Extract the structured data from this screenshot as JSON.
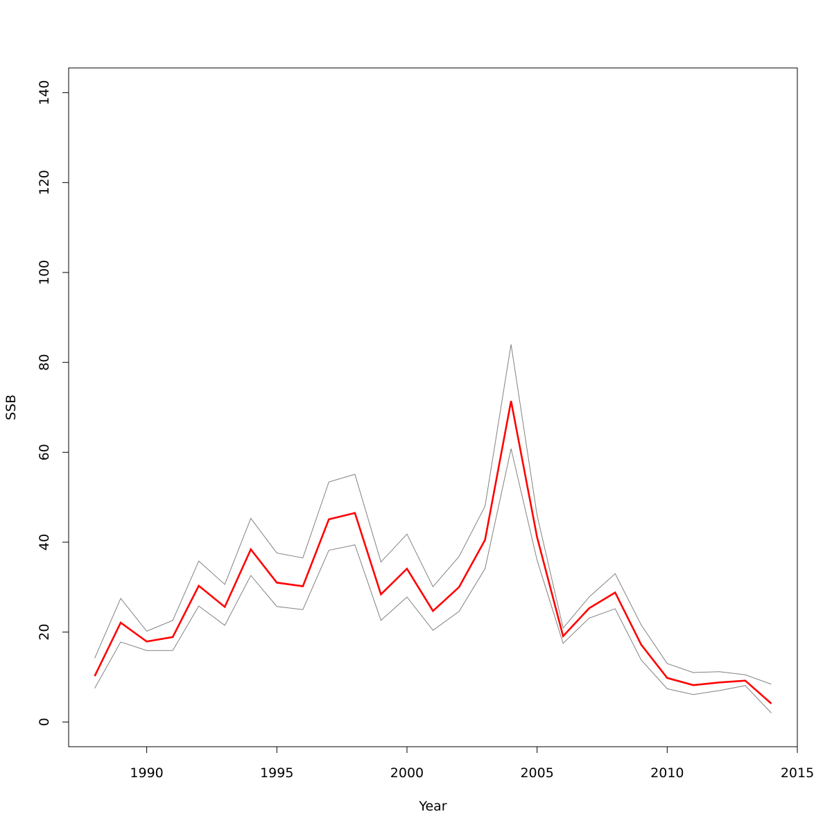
{
  "chart_data": {
    "type": "line",
    "title": "",
    "xlabel": "Year",
    "ylabel": "SSB",
    "xlim": [
      1987,
      2015
    ],
    "ylim": [
      -5.5,
      145.5
    ],
    "xticks": [
      "1990",
      "1995",
      "2000",
      "2005",
      "2010",
      "2015"
    ],
    "yticks": [
      "0",
      "20",
      "40",
      "60",
      "80",
      "100",
      "120",
      "140"
    ],
    "grid": false,
    "legend": "none",
    "x": [
      1988,
      1989,
      1990,
      1991,
      1992,
      1993,
      1994,
      1995,
      1996,
      1997,
      1998,
      1999,
      2000,
      2001,
      2002,
      2003,
      2004,
      2005,
      2006,
      2007,
      2008,
      2009,
      2010,
      2011,
      2012,
      2013,
      2014
    ],
    "series": [
      {
        "key": "estimate",
        "color": "#ff0000",
        "values": [
          10.2,
          22.1,
          17.9,
          18.9,
          30.3,
          25.6,
          38.4,
          31.0,
          30.2,
          45.1,
          46.5,
          28.4,
          34.1,
          24.7,
          30.0,
          40.5,
          71.4,
          41.1,
          19.1,
          25.3,
          28.8,
          17.2,
          9.8,
          8.2,
          8.8,
          9.2,
          4.1
        ]
      },
      {
        "key": "upper",
        "color": "#808080",
        "values": [
          14.2,
          27.5,
          20.2,
          22.6,
          35.8,
          30.6,
          45.3,
          37.6,
          36.5,
          53.4,
          55.1,
          35.6,
          41.8,
          30.1,
          36.8,
          48.0,
          84.0,
          46.0,
          20.9,
          27.8,
          33.0,
          21.6,
          13.0,
          11.0,
          11.2,
          10.5,
          8.4
        ]
      },
      {
        "key": "lower",
        "color": "#808080",
        "values": [
          7.5,
          17.8,
          15.9,
          15.9,
          25.8,
          21.5,
          32.6,
          25.7,
          25.0,
          38.2,
          39.4,
          22.6,
          27.8,
          20.4,
          24.6,
          34.1,
          60.8,
          36.0,
          17.5,
          23.1,
          25.2,
          13.8,
          7.4,
          6.1,
          7.0,
          8.1,
          2.0
        ]
      }
    ]
  }
}
